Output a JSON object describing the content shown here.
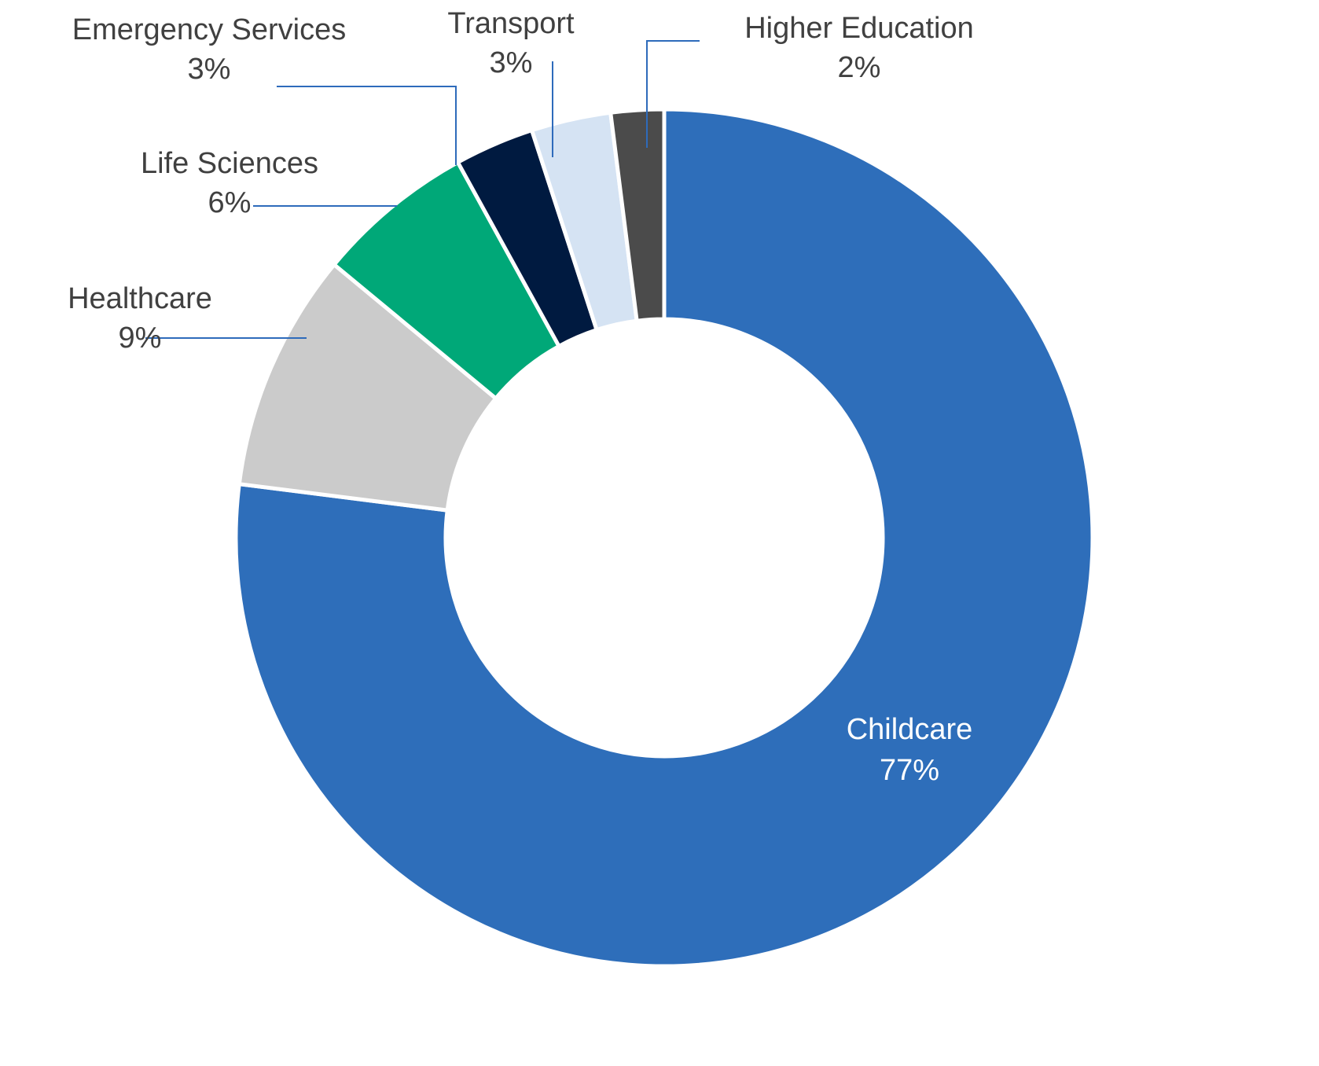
{
  "chart_data": {
    "type": "pie",
    "style": "donut",
    "title": "",
    "categories": [
      "Childcare",
      "Healthcare",
      "Life Sciences",
      "Emergency Services",
      "Transport",
      "Higher Education"
    ],
    "values": [
      77,
      9,
      6,
      3,
      3,
      2
    ],
    "value_labels": [
      "77%",
      "9%",
      "6%",
      "3%",
      "3%",
      "2%"
    ],
    "colors": [
      "#2e6eba",
      "#cbcbcb",
      "#00a878",
      "#001a40",
      "#d5e3f3",
      "#4b4b4b"
    ],
    "legend": "none"
  }
}
